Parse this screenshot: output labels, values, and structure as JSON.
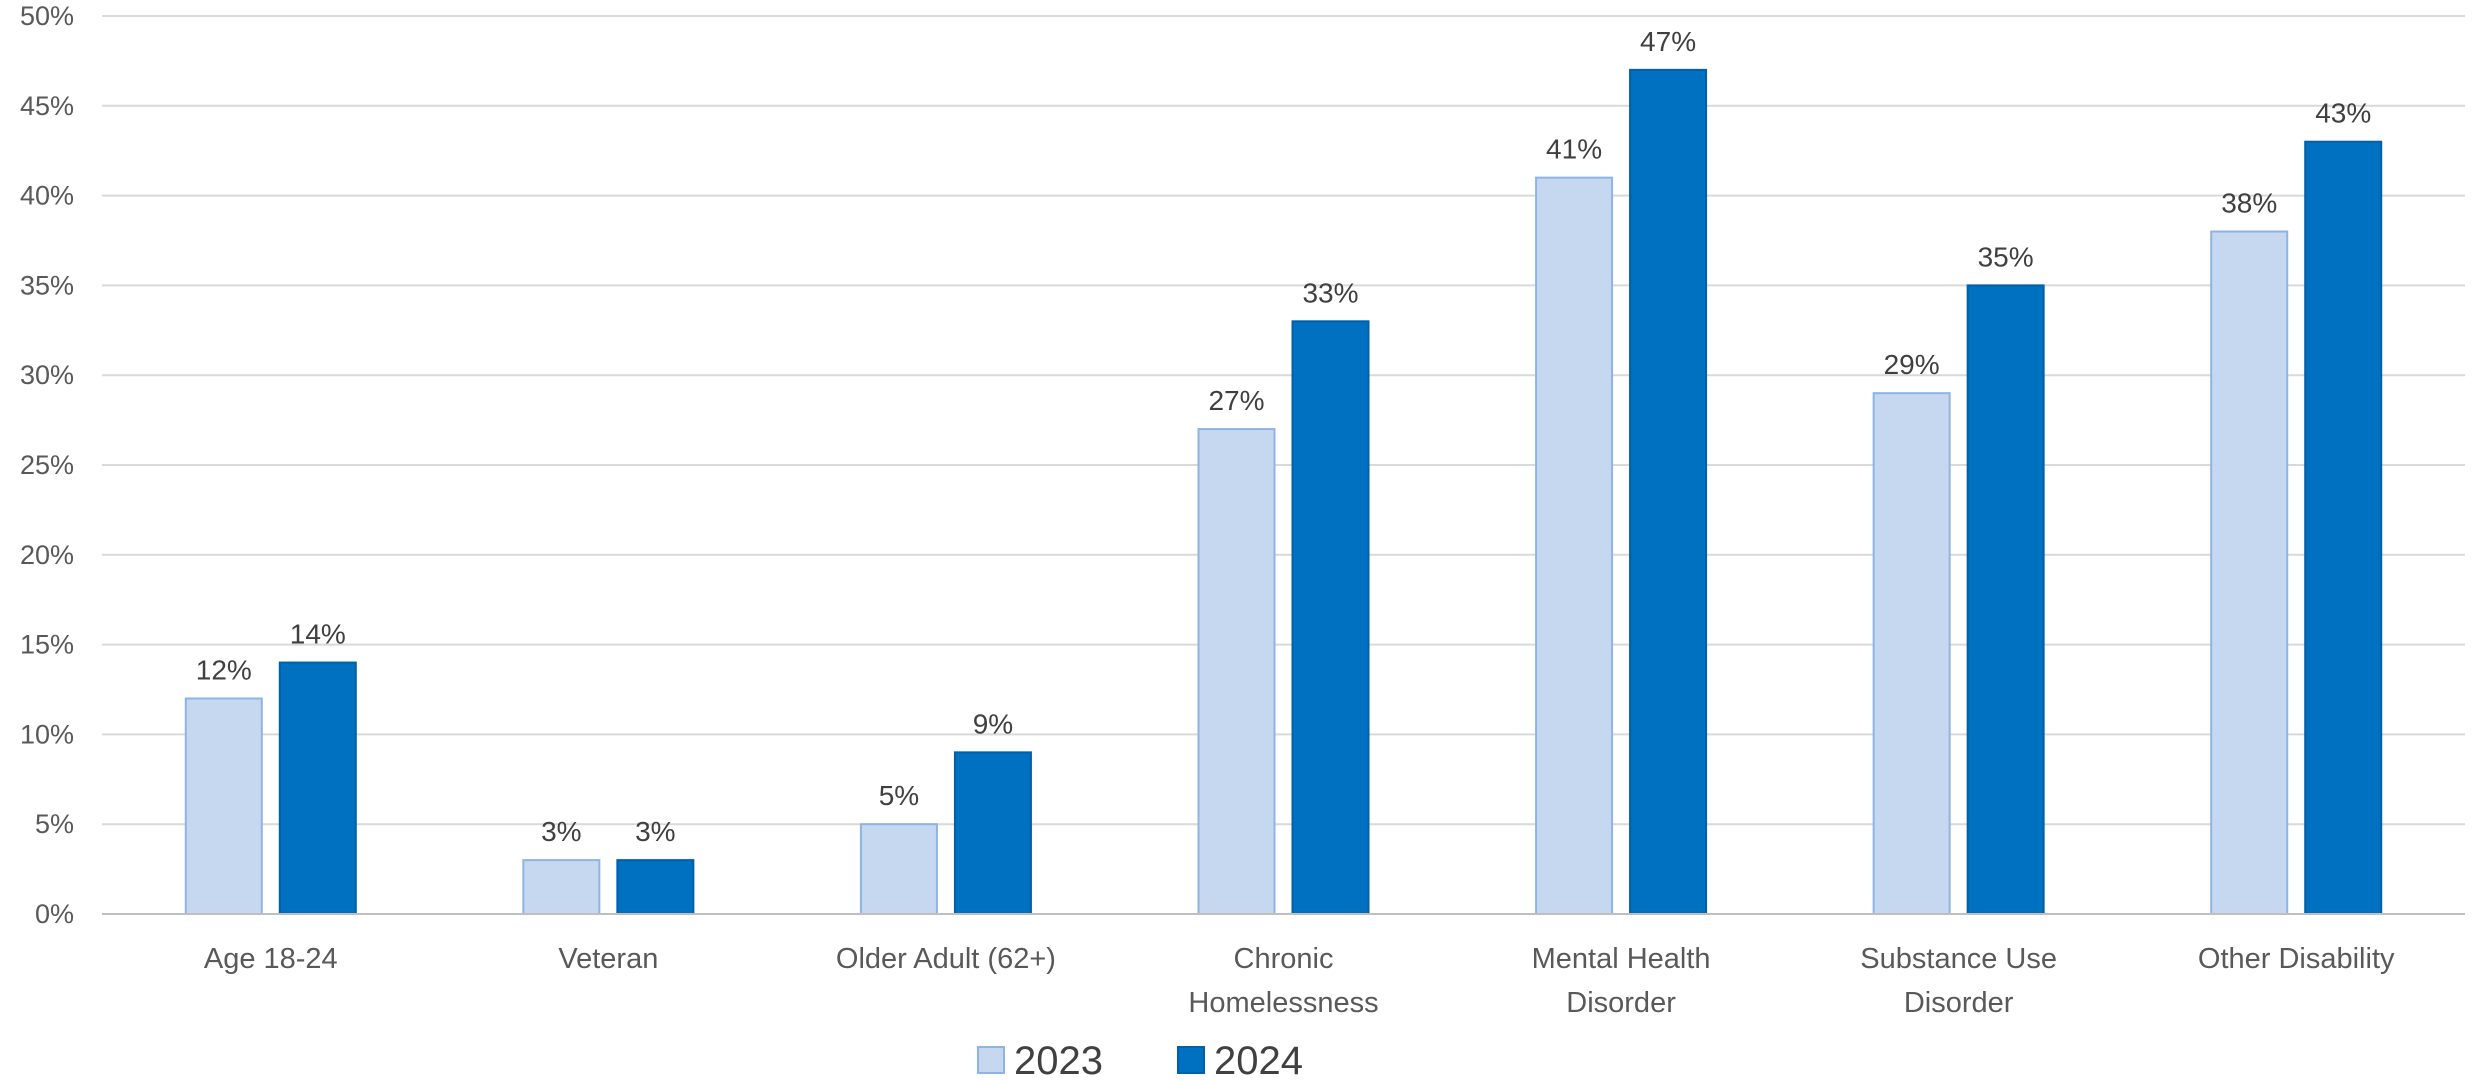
{
  "chart_data": {
    "type": "bar",
    "title": "",
    "xlabel": "",
    "ylabel": "",
    "categories": [
      [
        "Age 18-24"
      ],
      [
        "Veteran"
      ],
      [
        "Older Adult (62+)"
      ],
      [
        "Chronic",
        "Homelessness"
      ],
      [
        "Mental Health",
        "Disorder"
      ],
      [
        "Substance Use",
        "Disorder"
      ],
      [
        "Other Disability"
      ]
    ],
    "series": [
      {
        "name": "2023",
        "values": [
          12,
          3,
          5,
          27,
          41,
          29,
          38
        ],
        "value_labels": [
          "12%",
          "3%",
          "5%",
          "27%",
          "41%",
          "29%",
          "38%"
        ],
        "color": "#c5d8f0",
        "border": "#8eb4e3"
      },
      {
        "name": "2024",
        "values": [
          14,
          3,
          9,
          33,
          47,
          35,
          43
        ],
        "value_labels": [
          "14%",
          "3%",
          "9%",
          "33%",
          "47%",
          "35%",
          "43%"
        ],
        "color": "#0070c0",
        "border": "#0060a8"
      }
    ],
    "ylim": [
      0,
      50
    ],
    "yticks": [
      0,
      5,
      10,
      15,
      20,
      25,
      30,
      35,
      40,
      45,
      50
    ],
    "ytick_labels": [
      "0%",
      "5%",
      "10%",
      "15%",
      "20%",
      "25%",
      "30%",
      "35%",
      "40%",
      "45%",
      "50%"
    ],
    "grid": true,
    "legend_position": "bottom",
    "gridline_color": "#d9d9d9",
    "axis_color": "#bfbfbf"
  }
}
